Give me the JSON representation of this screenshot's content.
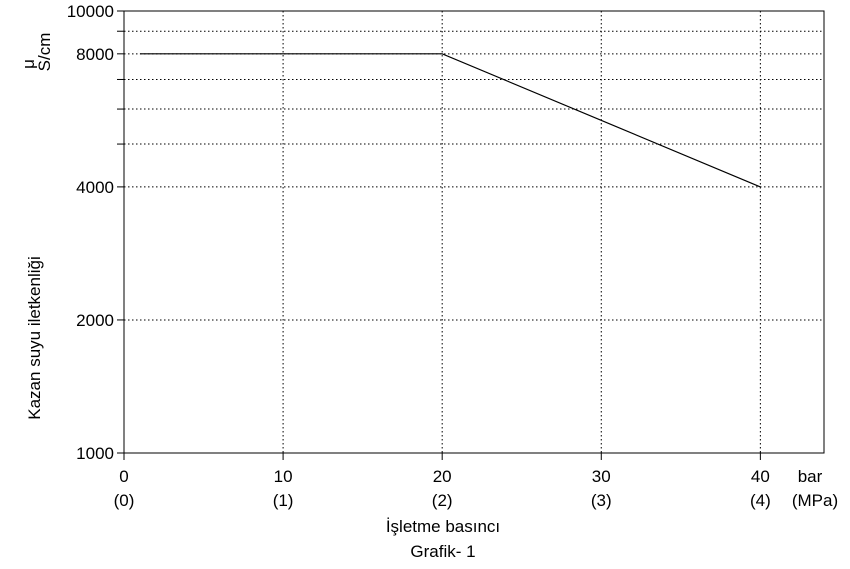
{
  "chart_data": {
    "type": "line",
    "title": "Grafik- 1",
    "xlabel": "İşletme basıncı",
    "ylabel": "Kazan suyu iletkenliği",
    "yunit_mu": "μ",
    "yunit": "S/cm",
    "x_unit_primary": "bar",
    "x_unit_secondary": "(MPa)",
    "xlim": [
      0,
      44
    ],
    "ylim": [
      1000,
      10000
    ],
    "yscale": "log",
    "grid": true,
    "x_ticks": [
      {
        "value": 0,
        "label": "0",
        "sub": "(0)"
      },
      {
        "value": 10,
        "label": "10",
        "sub": "(1)"
      },
      {
        "value": 20,
        "label": "20",
        "sub": "(2)"
      },
      {
        "value": 30,
        "label": "30",
        "sub": "(3)"
      },
      {
        "value": 40,
        "label": "40",
        "sub": "(4)"
      }
    ],
    "y_ticks_labeled": [
      {
        "value": 1000,
        "label": "1000"
      },
      {
        "value": 2000,
        "label": "2000"
      },
      {
        "value": 4000,
        "label": "4000"
      },
      {
        "value": 8000,
        "label": "8000"
      },
      {
        "value": 10000,
        "label": "10000"
      }
    ],
    "y_grid_unlabeled": [
      5000,
      6000,
      7000,
      9000
    ],
    "series": [
      {
        "x": [
          1,
          20,
          40
        ],
        "y": [
          8000,
          8000,
          4000
        ]
      }
    ]
  }
}
